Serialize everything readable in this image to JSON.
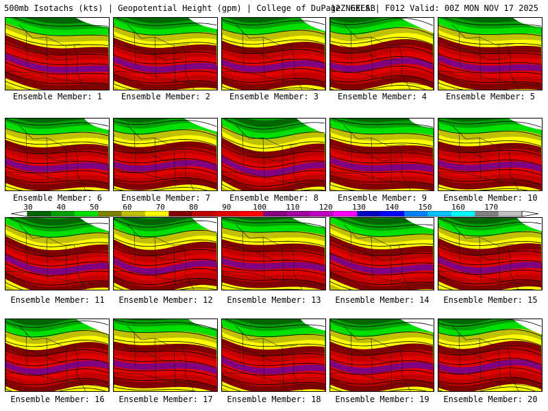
{
  "header": {
    "left": "500mb Isotachs (kts) | Geopotential Height (gpm) | College of DuPage NEXLAB",
    "right": "12Z GEFS | F012 Valid: 00Z MON NOV 17 2025"
  },
  "members": [
    {
      "label": "Ensemble Member: 1"
    },
    {
      "label": "Ensemble Member: 2"
    },
    {
      "label": "Ensemble Member: 3"
    },
    {
      "label": "Ensemble Member: 4"
    },
    {
      "label": "Ensemble Member: 5"
    },
    {
      "label": "Ensemble Member: 6"
    },
    {
      "label": "Ensemble Member: 7"
    },
    {
      "label": "Ensemble Member: 8"
    },
    {
      "label": "Ensemble Member: 9"
    },
    {
      "label": "Ensemble Member: 10"
    },
    {
      "label": "Ensemble Member: 11"
    },
    {
      "label": "Ensemble Member: 12"
    },
    {
      "label": "Ensemble Member: 13"
    },
    {
      "label": "Ensemble Member: 14"
    },
    {
      "label": "Ensemble Member: 15"
    },
    {
      "label": "Ensemble Member: 16"
    },
    {
      "label": "Ensemble Member: 17"
    },
    {
      "label": "Ensemble Member: 18"
    },
    {
      "label": "Ensemble Member: 19"
    },
    {
      "label": "Ensemble Member: 20"
    }
  ],
  "colorbar": {
    "ticks": [
      "30",
      "40",
      "50",
      "60",
      "70",
      "80",
      "90",
      "100",
      "110",
      "120",
      "130",
      "140",
      "150",
      "160",
      "170"
    ],
    "colors": [
      "#006400",
      "#00a000",
      "#00e000",
      "#808000",
      "#c0c000",
      "#ffff00",
      "#800000",
      "#c00000",
      "#e00000",
      "#ff0000",
      "#800080",
      "#a000a0",
      "#c000c0",
      "#ff00ff",
      "#0000c0",
      "#0000ff",
      "#0080ff",
      "#00c0ff",
      "#00ffff",
      "#808080",
      "#c0c0c0"
    ]
  },
  "bands": {
    "green_dark": "#006400",
    "green_mid": "#00a000",
    "green_light": "#00e000",
    "olive": "#808000",
    "olive_light": "#c0c000",
    "yellow": "#ffff00",
    "red_dark": "#800000",
    "red_mid": "#c00000",
    "red": "#e00000",
    "red_bright": "#ff0000",
    "purple": "#800080",
    "purple_light": "#a000a0"
  }
}
